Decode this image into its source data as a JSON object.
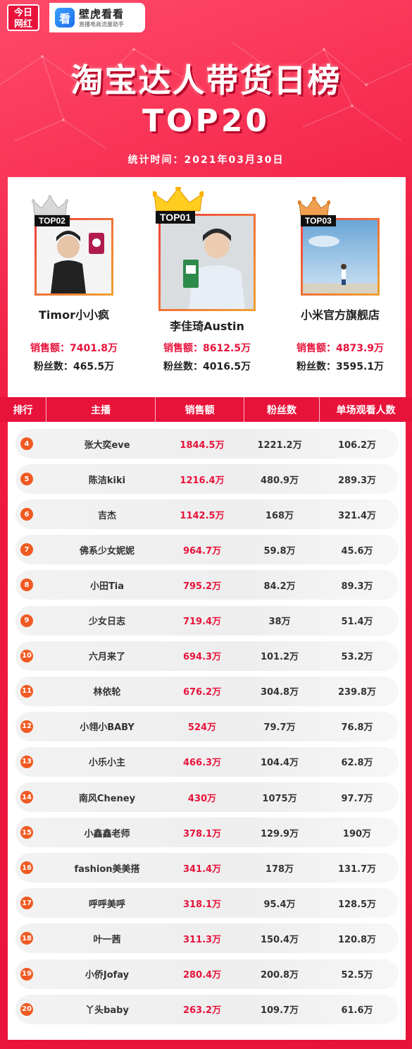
{
  "logos": {
    "jrwh_line1": "今日",
    "jrwh_line2": "网红",
    "bhkk_icon": "看",
    "bhkk_name": "壁虎看看",
    "bhkk_sub": "直播电商流量助手"
  },
  "title": "淘宝达人带货日榜",
  "subtitle": "TOP20",
  "stat_time": "统计时间：2021年03月30日",
  "top3": [
    {
      "tag": "TOP02",
      "name": "Timor小小疯",
      "sales": "销售额：7401.8万",
      "fans": "粉丝数：465.5万",
      "crown": "silver-crown-icon"
    },
    {
      "tag": "TOP01",
      "name": "李佳琦Austin",
      "sales": "销售额：8612.5万",
      "fans": "粉丝数：4016.5万",
      "crown": "gold-crown-icon"
    },
    {
      "tag": "TOP03",
      "name": "小米官方旗舰店",
      "sales": "销售额：4873.9万",
      "fans": "粉丝数：3595.1万",
      "crown": "bronze-crown-icon"
    }
  ],
  "table": {
    "headers": [
      "排行",
      "主播",
      "销售额",
      "粉丝数",
      "单场观看人数"
    ],
    "rows": [
      {
        "rank": "4",
        "name": "张大奕eve",
        "sales": "1844.5万",
        "fans": "1221.2万",
        "views": "106.2万"
      },
      {
        "rank": "5",
        "name": "陈洁kiki",
        "sales": "1216.4万",
        "fans": "480.9万",
        "views": "289.3万"
      },
      {
        "rank": "6",
        "name": "吉杰",
        "sales": "1142.5万",
        "fans": "168万",
        "views": "321.4万"
      },
      {
        "rank": "7",
        "name": "佛系少女妮妮",
        "sales": "964.7万",
        "fans": "59.8万",
        "views": "45.6万"
      },
      {
        "rank": "8",
        "name": "小田Tia",
        "sales": "795.2万",
        "fans": "84.2万",
        "views": "89.3万"
      },
      {
        "rank": "9",
        "name": "少女日志",
        "sales": "719.4万",
        "fans": "38万",
        "views": "51.4万"
      },
      {
        "rank": "10",
        "name": "六月来了",
        "sales": "694.3万",
        "fans": "101.2万",
        "views": "53.2万"
      },
      {
        "rank": "11",
        "name": "林依轮",
        "sales": "676.2万",
        "fans": "304.8万",
        "views": "239.8万"
      },
      {
        "rank": "12",
        "name": "小翎小BABY",
        "sales": "524万",
        "fans": "79.7万",
        "views": "76.8万"
      },
      {
        "rank": "13",
        "name": "小乐小主",
        "sales": "466.3万",
        "fans": "104.4万",
        "views": "62.8万"
      },
      {
        "rank": "14",
        "name": "南风Cheney",
        "sales": "430万",
        "fans": "1075万",
        "views": "97.7万"
      },
      {
        "rank": "15",
        "name": "小鑫鑫老师",
        "sales": "378.1万",
        "fans": "129.9万",
        "views": "190万"
      },
      {
        "rank": "16",
        "name": "fashion美美搭",
        "sales": "341.4万",
        "fans": "178万",
        "views": "131.7万"
      },
      {
        "rank": "17",
        "name": "呼呼美呼",
        "sales": "318.1万",
        "fans": "95.4万",
        "views": "128.5万"
      },
      {
        "rank": "18",
        "name": "叶一茜",
        "sales": "311.3万",
        "fans": "150.4万",
        "views": "120.8万"
      },
      {
        "rank": "19",
        "name": "小侨Jofay",
        "sales": "280.4万",
        "fans": "200.8万",
        "views": "52.5万"
      },
      {
        "rank": "20",
        "name": "丫头baby",
        "sales": "263.2万",
        "fans": "109.7万",
        "views": "61.6万"
      }
    ]
  },
  "colors": {
    "brand_red": "#e8133b",
    "rank_orange": "#f05a22"
  }
}
